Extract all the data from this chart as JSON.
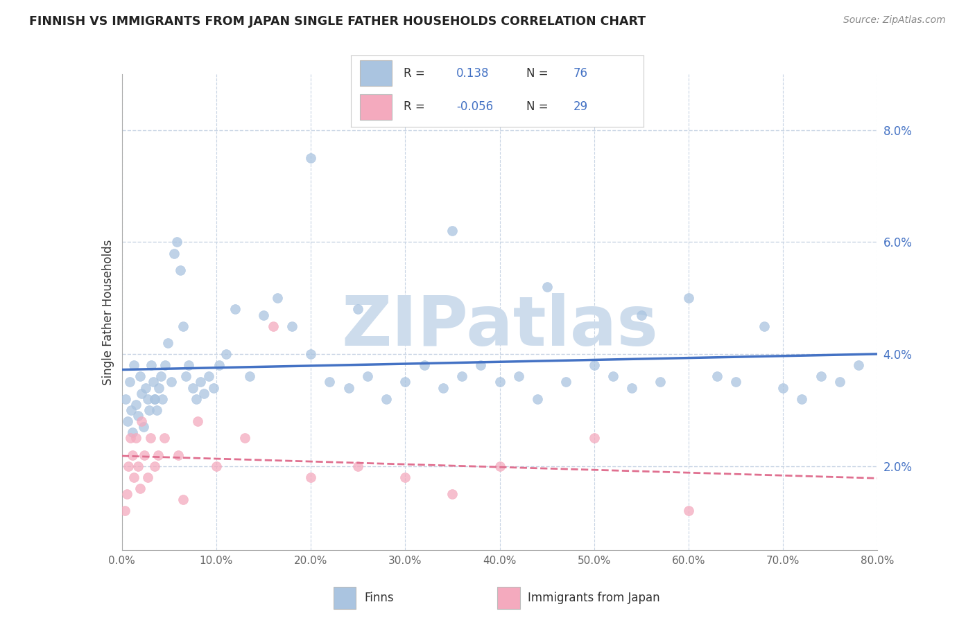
{
  "title": "FINNISH VS IMMIGRANTS FROM JAPAN SINGLE FATHER HOUSEHOLDS CORRELATION CHART",
  "source": "Source: ZipAtlas.com",
  "ylabel": "Single Father Households",
  "xlim": [
    0.0,
    80.0
  ],
  "ylim": [
    0.5,
    9.0
  ],
  "yticks": [
    2.0,
    4.0,
    6.0,
    8.0
  ],
  "xticks": [
    0.0,
    10.0,
    20.0,
    30.0,
    40.0,
    50.0,
    60.0,
    70.0,
    80.0
  ],
  "finns_R": 0.138,
  "finns_N": 76,
  "japan_R": -0.056,
  "japan_N": 29,
  "finns_color": "#aac4e0",
  "japan_color": "#f4aabe",
  "finns_line_color": "#4472c4",
  "japan_line_color": "#e07090",
  "watermark": "ZIPatlas",
  "watermark_color": "#cddcec",
  "background_color": "#ffffff",
  "grid_color": "#c8d4e4",
  "legend_text_color": "#4472c4",
  "legend_label_color": "#333333",
  "finns_x": [
    0.4,
    0.6,
    0.8,
    1.0,
    1.1,
    1.3,
    1.5,
    1.7,
    1.9,
    2.1,
    2.3,
    2.5,
    2.7,
    2.9,
    3.1,
    3.3,
    3.5,
    3.7,
    3.9,
    4.1,
    4.3,
    4.6,
    4.9,
    5.2,
    5.5,
    5.8,
    6.2,
    6.5,
    6.8,
    7.1,
    7.5,
    7.9,
    8.3,
    8.7,
    9.2,
    9.7,
    10.3,
    11.0,
    12.0,
    13.5,
    15.0,
    16.5,
    18.0,
    20.0,
    22.0,
    24.0,
    26.0,
    28.0,
    30.0,
    32.0,
    34.0,
    36.0,
    38.0,
    40.0,
    42.0,
    44.0,
    47.0,
    50.0,
    52.0,
    54.0,
    57.0,
    60.0,
    63.0,
    65.0,
    68.0,
    70.0,
    72.0,
    74.0,
    76.0,
    78.0,
    3.5,
    20.0,
    35.0,
    45.0,
    55.0,
    25.0
  ],
  "finns_y": [
    3.2,
    2.8,
    3.5,
    3.0,
    2.6,
    3.8,
    3.1,
    2.9,
    3.6,
    3.3,
    2.7,
    3.4,
    3.2,
    3.0,
    3.8,
    3.5,
    3.2,
    3.0,
    3.4,
    3.6,
    3.2,
    3.8,
    4.2,
    3.5,
    5.8,
    6.0,
    5.5,
    4.5,
    3.6,
    3.8,
    3.4,
    3.2,
    3.5,
    3.3,
    3.6,
    3.4,
    3.8,
    4.0,
    4.8,
    3.6,
    4.7,
    5.0,
    4.5,
    4.0,
    3.5,
    3.4,
    3.6,
    3.2,
    3.5,
    3.8,
    3.4,
    3.6,
    3.8,
    3.5,
    3.6,
    3.2,
    3.5,
    3.8,
    3.6,
    3.4,
    3.5,
    5.0,
    3.6,
    3.5,
    4.5,
    3.4,
    3.2,
    3.6,
    3.5,
    3.8,
    3.2,
    7.5,
    6.2,
    5.2,
    4.7,
    4.8
  ],
  "japan_x": [
    0.3,
    0.5,
    0.7,
    0.9,
    1.1,
    1.3,
    1.5,
    1.7,
    1.9,
    2.1,
    2.4,
    2.7,
    3.0,
    3.5,
    4.5,
    6.0,
    8.0,
    10.0,
    13.0,
    16.0,
    20.0,
    25.0,
    30.0,
    35.0,
    40.0,
    50.0,
    60.0,
    3.8,
    6.5
  ],
  "japan_y": [
    1.2,
    1.5,
    2.0,
    2.5,
    2.2,
    1.8,
    2.5,
    2.0,
    1.6,
    2.8,
    2.2,
    1.8,
    2.5,
    2.0,
    2.5,
    2.2,
    2.8,
    2.0,
    2.5,
    4.5,
    1.8,
    2.0,
    1.8,
    1.5,
    2.0,
    2.5,
    1.2,
    2.2,
    1.4
  ]
}
